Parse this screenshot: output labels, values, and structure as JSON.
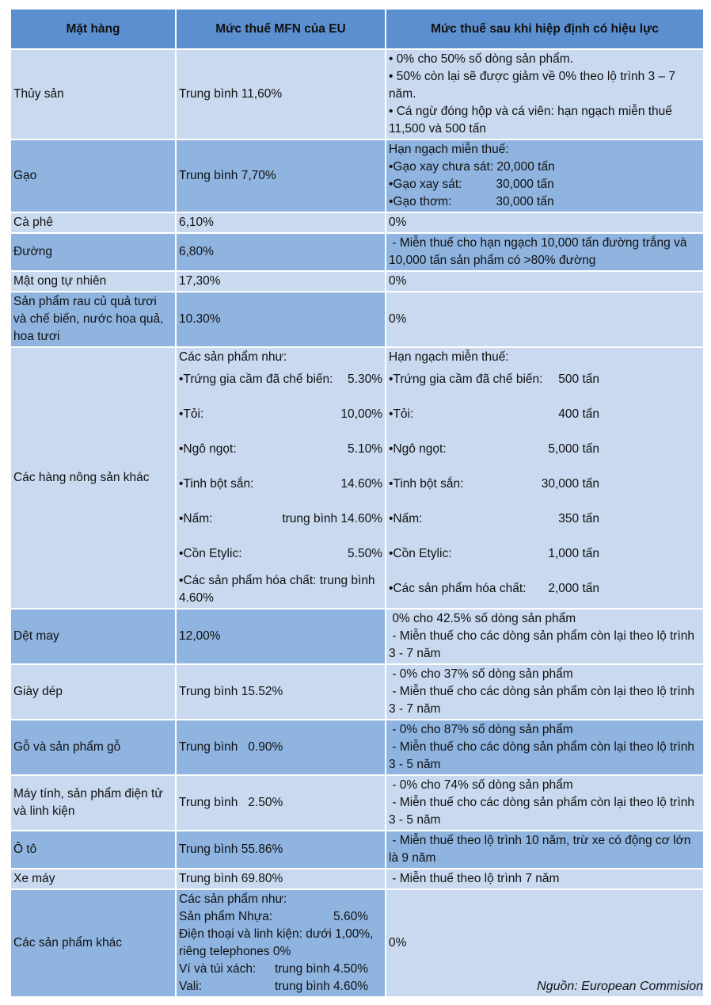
{
  "headers": [
    "Mặt hàng",
    "Mức thuế MFN của EU",
    "Mức thuế sau khi hiệp định có hiệu lực"
  ],
  "rows": [
    {
      "item": "Thủy sản",
      "mfn": "Trung bình 11,60%",
      "after": [
        "• 0% cho 50% số dòng sản phẩm.",
        "• 50% còn lại sẽ được giảm về 0% theo lộ trình 3 – 7 năm.",
        "• Cá ngừ đóng hộp và cá viên: hạn ngạch miễn thuế 11,500 và 500 tấn"
      ]
    },
    {
      "item": "Gạo",
      "mfn": "Trung bình 7,70%",
      "after": [
        "Hạn ngạch miễn thuế:",
        "•Gạo xay chưa sát: 20,000 tấn",
        "•Gạo xay sát:          30,000 tấn",
        "•Gạo thơm:             30,000 tấn"
      ]
    },
    {
      "item": "Cà phê",
      "mfn": "6,10%",
      "after": [
        "0%"
      ]
    },
    {
      "item": "Đường",
      "mfn": "6,80%",
      "after": [
        " - Miễn thuế cho hạn ngạch 10,000 tấn đường trắng và 10,000 tấn sản phẩm có >80% đường"
      ]
    },
    {
      "item": "Mật ong tự nhiên",
      "mfn": "17,30%",
      "after": [
        "0%"
      ]
    },
    {
      "item": "Sản phẩm rau củ quả tươi và chế biến, nước hoa quả, hoa tươi",
      "mfn": "10.30%",
      "after": [
        "0%"
      ]
    },
    {
      "item": "Các hàng nông sản khác",
      "mfn_intro": "Các sản phẩm như:",
      "mfn_pairs": [
        [
          "•Trứng gia cầm đã chế biến:",
          "5.30%"
        ],
        [
          "•Tỏi:",
          "10,00%"
        ],
        [
          "•Ngô ngọt:",
          "5.10%"
        ],
        [
          "•Tinh bột sắn:",
          "14.60%"
        ],
        [
          "•Nấm:",
          "trung bình 14.60%"
        ],
        [
          "•Cồn Etylic:",
          "5.50%"
        ]
      ],
      "mfn_last": "•Các sản phẩm hóa chất: trung bình 4.60%",
      "after_intro": "Hạn ngạch miễn thuế:",
      "after_pairs": [
        [
          "•Trứng gia cầm đã chế biến:",
          "500 tấn"
        ],
        [
          "•Tỏi:",
          "400 tấn"
        ],
        [
          "•Ngô ngọt:",
          "5,000 tấn"
        ],
        [
          "•Tinh bột sắn:",
          "30,000 tấn"
        ],
        [
          "•Nấm:",
          "350 tấn"
        ],
        [
          "•Cồn Etylic:",
          "1,000 tấn"
        ],
        [
          "•Các sản phẩm hóa chất:",
          "2,000 tấn"
        ]
      ]
    },
    {
      "item": "Dệt may",
      "mfn": "12,00%",
      "after": [
        " 0% cho 42.5% số dòng sản phẩm",
        " - Miễn thuế cho các dòng sản phẩm còn lại theo lộ trình 3 - 7 năm"
      ]
    },
    {
      "item": "Giày dép",
      "mfn": "Trung bình 15.52%",
      "after": [
        " - 0% cho 37% số dòng sản phẩm",
        " - Miễn thuế cho các dòng sản phẩm còn lại theo lộ trình 3 - 7 năm"
      ]
    },
    {
      "item": "Gỗ và sản phẩm gỗ",
      "mfn": "Trung bình   0.90%",
      "after": [
        " - 0% cho 87% số dòng sản phẩm",
        " - Miễn thuế cho các dòng sản phẩm còn lại theo lộ trình 3 - 5 năm"
      ]
    },
    {
      "item": "Máy tính, sản phẩm điện tử và linh kiện",
      "mfn": "Trung bình   2.50%",
      "after": [
        " - 0% cho 74% số dòng sản phẩm",
        " - Miễn thuế cho các dòng sản phẩm còn lại theo lộ trình 3 - 5 năm"
      ]
    },
    {
      "item": "Ô tô",
      "mfn": "Trung bình 55.86%",
      "after": [
        " - Miễn thuế theo lộ trình 10 năm, trừ xe có động cơ lớn là 9 năm"
      ]
    },
    {
      "item": "Xe máy",
      "mfn": "Trung bình 69.80%",
      "after": [
        " - Miễn thuế theo lộ trình 7 năm"
      ]
    },
    {
      "item": "Các sản phẩm khác",
      "mfn_lines": [
        "Các sản phẩm như:"
      ],
      "mfn_pair1": [
        "Sản phẩm Nhựa:",
        "5.60%"
      ],
      "mfn_mid": "Điện thoại và linh kiện: dưới 1,00%, riêng telephones 0%",
      "mfn_pair2": [
        "Ví và túi xách:",
        "trung bình 4.50%"
      ],
      "mfn_pair3": [
        "Vali:",
        "trung bình 4.60%"
      ],
      "after": [
        "0%"
      ]
    }
  ],
  "source": "Nguồn: European Commision"
}
